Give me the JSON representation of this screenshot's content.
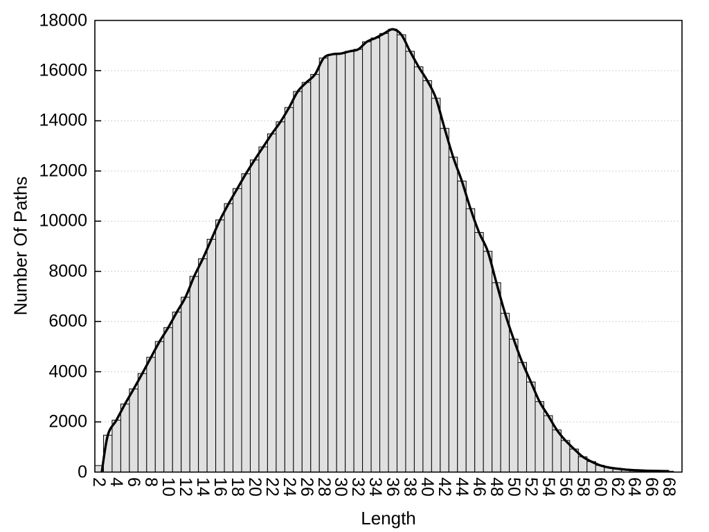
{
  "chart_data": {
    "type": "bar",
    "title": "",
    "xlabel": "Length",
    "ylabel": "Number Of Paths",
    "xlim": [
      1.5,
      69.5
    ],
    "ylim": [
      0,
      18000
    ],
    "x_tick_step": 2,
    "y_tick_step": 2000,
    "grid": "horizontal-dotted",
    "legend": "none",
    "overlay": "smooth spline line through bar tops, starting at y=0 near x=2.3",
    "curve_start_x": 2.3,
    "categories": [
      2,
      3,
      4,
      5,
      6,
      7,
      8,
      9,
      10,
      11,
      12,
      13,
      14,
      15,
      16,
      17,
      18,
      19,
      20,
      21,
      22,
      23,
      24,
      25,
      26,
      27,
      28,
      29,
      30,
      31,
      32,
      33,
      34,
      35,
      36,
      37,
      38,
      39,
      40,
      41,
      42,
      43,
      44,
      45,
      46,
      47,
      48,
      49,
      50,
      51,
      52,
      53,
      54,
      55,
      56,
      57,
      58,
      59,
      60,
      61,
      62,
      63,
      64,
      65,
      66,
      67,
      68
    ],
    "values": [
      260,
      1470,
      2070,
      2715,
      3315,
      3930,
      4575,
      5205,
      5760,
      6380,
      6970,
      7800,
      8500,
      9280,
      10050,
      10700,
      11300,
      11890,
      12440,
      12960,
      13480,
      13960,
      14530,
      15170,
      15530,
      15850,
      16500,
      16650,
      16680,
      16770,
      16850,
      17150,
      17300,
      17480,
      17650,
      17430,
      16770,
      16150,
      15600,
      14900,
      13700,
      12550,
      11600,
      10500,
      9550,
      8800,
      7550,
      6330,
      5300,
      4370,
      3590,
      2810,
      2250,
      1680,
      1260,
      920,
      610,
      420,
      270,
      185,
      135,
      100,
      75,
      60,
      50,
      42,
      35
    ],
    "x_tick_labels": [
      "2",
      "4",
      "6",
      "8",
      "10",
      "12",
      "14",
      "16",
      "18",
      "20",
      "22",
      "24",
      "26",
      "28",
      "30",
      "32",
      "34",
      "36",
      "38",
      "40",
      "42",
      "44",
      "46",
      "48",
      "50",
      "52",
      "54",
      "56",
      "58",
      "60",
      "62",
      "64",
      "66",
      "68"
    ],
    "y_tick_labels": [
      "0",
      "2000",
      "4000",
      "6000",
      "8000",
      "10000",
      "12000",
      "14000",
      "16000",
      "18000"
    ],
    "colors": {
      "bar_fill": "#e0e0e0",
      "bar_stroke": "#000000",
      "line": "#000000",
      "grid": "#bcbcbc",
      "frame": "#000000",
      "background": "#ffffff",
      "text": "#000000"
    }
  }
}
